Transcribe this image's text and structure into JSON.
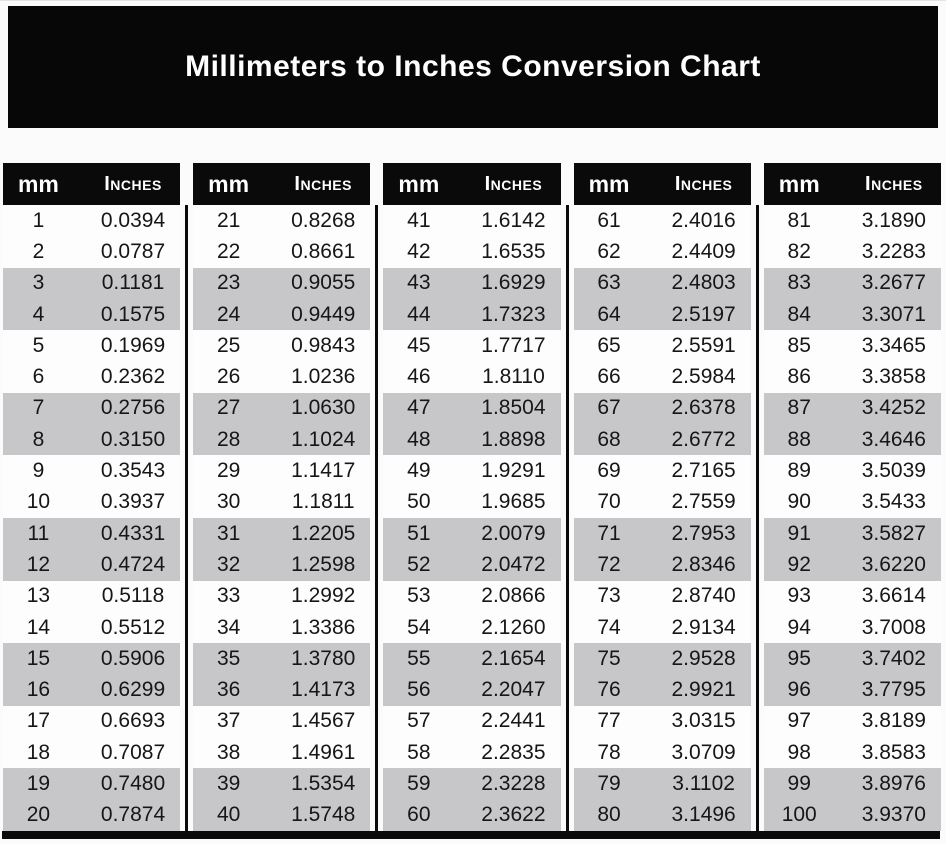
{
  "page": {
    "title": "Millimeters to Inches Conversion Chart"
  },
  "table_header": {
    "mm_label": "mm",
    "inches_label": "Inches"
  },
  "colors": {
    "banner_bg": "#070707",
    "header_bg": "#0a0a0a",
    "header_text": "#ffffff",
    "stripe_gray": "#c7c7ca",
    "row_white": "#fdfdfd",
    "text": "#161616",
    "page_bg": "#fbfbfb"
  },
  "chart_data": {
    "type": "table",
    "title": "Millimeters to Inches Conversion Chart",
    "columns": [
      "mm",
      "Inches"
    ],
    "note": "five side-by-side sub-tables, rows shaded in alternating pairs"
  },
  "tables": [
    {
      "rows": [
        [
          "1",
          "0.0394"
        ],
        [
          "2",
          "0.0787"
        ],
        [
          "3",
          "0.1181"
        ],
        [
          "4",
          "0.1575"
        ],
        [
          "5",
          "0.1969"
        ],
        [
          "6",
          "0.2362"
        ],
        [
          "7",
          "0.2756"
        ],
        [
          "8",
          "0.3150"
        ],
        [
          "9",
          "0.3543"
        ],
        [
          "10",
          "0.3937"
        ],
        [
          "11",
          "0.4331"
        ],
        [
          "12",
          "0.4724"
        ],
        [
          "13",
          "0.5118"
        ],
        [
          "14",
          "0.5512"
        ],
        [
          "15",
          "0.5906"
        ],
        [
          "16",
          "0.6299"
        ],
        [
          "17",
          "0.6693"
        ],
        [
          "18",
          "0.7087"
        ],
        [
          "19",
          "0.7480"
        ],
        [
          "20",
          "0.7874"
        ]
      ]
    },
    {
      "rows": [
        [
          "21",
          "0.8268"
        ],
        [
          "22",
          "0.8661"
        ],
        [
          "23",
          "0.9055"
        ],
        [
          "24",
          "0.9449"
        ],
        [
          "25",
          "0.9843"
        ],
        [
          "26",
          "1.0236"
        ],
        [
          "27",
          "1.0630"
        ],
        [
          "28",
          "1.1024"
        ],
        [
          "29",
          "1.1417"
        ],
        [
          "30",
          "1.1811"
        ],
        [
          "31",
          "1.2205"
        ],
        [
          "32",
          "1.2598"
        ],
        [
          "33",
          "1.2992"
        ],
        [
          "34",
          "1.3386"
        ],
        [
          "35",
          "1.3780"
        ],
        [
          "36",
          "1.4173"
        ],
        [
          "37",
          "1.4567"
        ],
        [
          "38",
          "1.4961"
        ],
        [
          "39",
          "1.5354"
        ],
        [
          "40",
          "1.5748"
        ]
      ]
    },
    {
      "rows": [
        [
          "41",
          "1.6142"
        ],
        [
          "42",
          "1.6535"
        ],
        [
          "43",
          "1.6929"
        ],
        [
          "44",
          "1.7323"
        ],
        [
          "45",
          "1.7717"
        ],
        [
          "46",
          "1.8110"
        ],
        [
          "47",
          "1.8504"
        ],
        [
          "48",
          "1.8898"
        ],
        [
          "49",
          "1.9291"
        ],
        [
          "50",
          "1.9685"
        ],
        [
          "51",
          "2.0079"
        ],
        [
          "52",
          "2.0472"
        ],
        [
          "53",
          "2.0866"
        ],
        [
          "54",
          "2.1260"
        ],
        [
          "55",
          "2.1654"
        ],
        [
          "56",
          "2.2047"
        ],
        [
          "57",
          "2.2441"
        ],
        [
          "58",
          "2.2835"
        ],
        [
          "59",
          "2.3228"
        ],
        [
          "60",
          "2.3622"
        ]
      ]
    },
    {
      "rows": [
        [
          "61",
          "2.4016"
        ],
        [
          "62",
          "2.4409"
        ],
        [
          "63",
          "2.4803"
        ],
        [
          "64",
          "2.5197"
        ],
        [
          "65",
          "2.5591"
        ],
        [
          "66",
          "2.5984"
        ],
        [
          "67",
          "2.6378"
        ],
        [
          "68",
          "2.6772"
        ],
        [
          "69",
          "2.7165"
        ],
        [
          "70",
          "2.7559"
        ],
        [
          "71",
          "2.7953"
        ],
        [
          "72",
          "2.8346"
        ],
        [
          "73",
          "2.8740"
        ],
        [
          "74",
          "2.9134"
        ],
        [
          "75",
          "2.9528"
        ],
        [
          "76",
          "2.9921"
        ],
        [
          "77",
          "3.0315"
        ],
        [
          "78",
          "3.0709"
        ],
        [
          "79",
          "3.1102"
        ],
        [
          "80",
          "3.1496"
        ]
      ]
    },
    {
      "rows": [
        [
          "81",
          "3.1890"
        ],
        [
          "82",
          "3.2283"
        ],
        [
          "83",
          "3.2677"
        ],
        [
          "84",
          "3.3071"
        ],
        [
          "85",
          "3.3465"
        ],
        [
          "86",
          "3.3858"
        ],
        [
          "87",
          "3.4252"
        ],
        [
          "88",
          "3.4646"
        ],
        [
          "89",
          "3.5039"
        ],
        [
          "90",
          "3.5433"
        ],
        [
          "91",
          "3.5827"
        ],
        [
          "92",
          "3.6220"
        ],
        [
          "93",
          "3.6614"
        ],
        [
          "94",
          "3.7008"
        ],
        [
          "95",
          "3.7402"
        ],
        [
          "96",
          "3.7795"
        ],
        [
          "97",
          "3.8189"
        ],
        [
          "98",
          "3.8583"
        ],
        [
          "99",
          "3.8976"
        ],
        [
          "100",
          "3.9370"
        ]
      ]
    }
  ]
}
